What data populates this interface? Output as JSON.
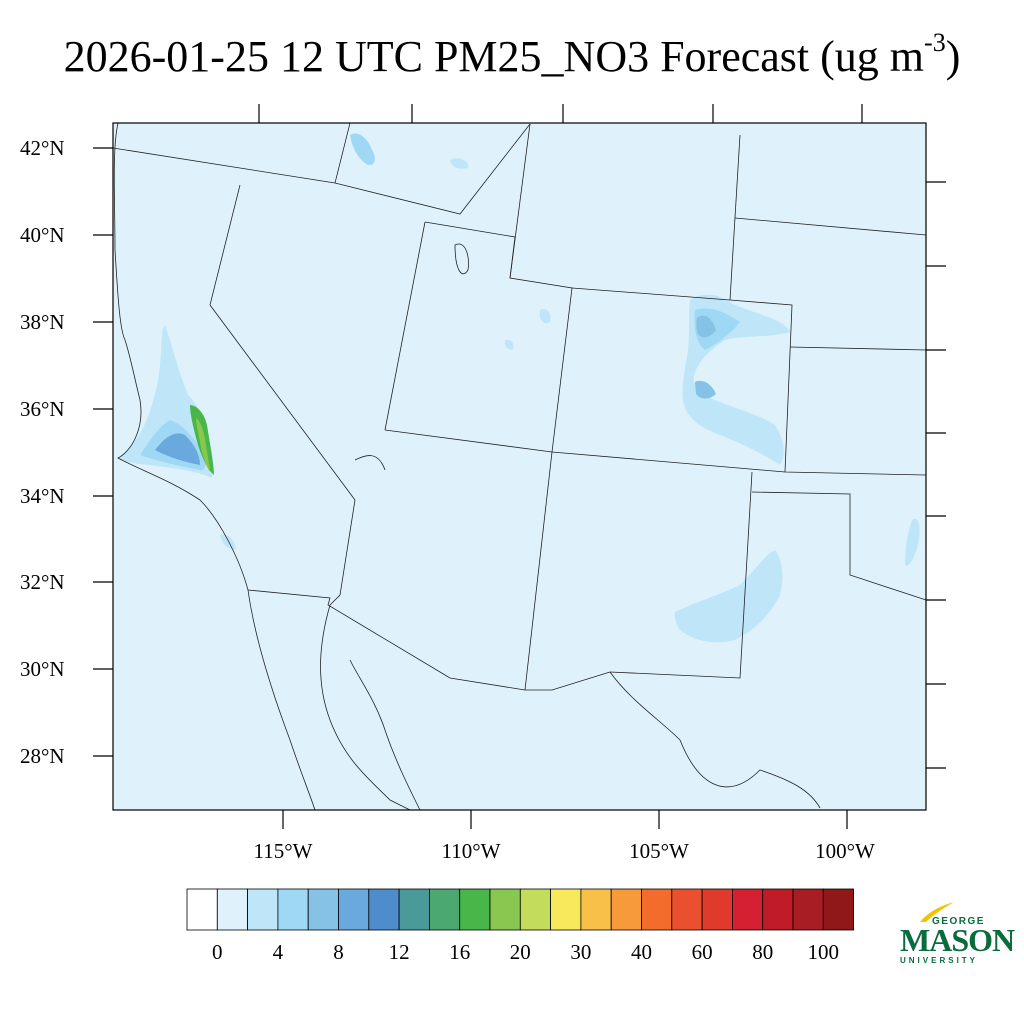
{
  "title": {
    "main": "2026-01-25 12 UTC PM25_NO3 Forecast (ug m",
    "sup": "-3",
    "close": ")"
  },
  "map": {
    "lat_labels": [
      "42°N",
      "40°N",
      "38°N",
      "36°N",
      "34°N",
      "32°N",
      "30°N",
      "28°N"
    ],
    "lon_labels": [
      "115°W",
      "110°W",
      "105°W",
      "100°W"
    ],
    "background_color": "#dff2fc"
  },
  "colorbar": {
    "colors": [
      "#ffffff",
      "#dff2fc",
      "#bfe6f8",
      "#9fd8f5",
      "#86c2e6",
      "#6aa9de",
      "#4e8ccc",
      "#4a9a9a",
      "#4aa870",
      "#48b648",
      "#88c850",
      "#c4dc5c",
      "#f8e85c",
      "#f8c048",
      "#f69a3c",
      "#f46c2c",
      "#ea5030",
      "#e03a2c",
      "#d42030",
      "#c01c28",
      "#a81c24",
      "#901818"
    ],
    "labels": [
      "0",
      "4",
      "8",
      "12",
      "16",
      "20",
      "30",
      "40",
      "60",
      "80",
      "100"
    ]
  },
  "logo": {
    "top": "GEORGE",
    "name": "MASON",
    "bottom": "UNIVERSITY",
    "color": "#0a6b3c",
    "accent": "#f2c300"
  }
}
